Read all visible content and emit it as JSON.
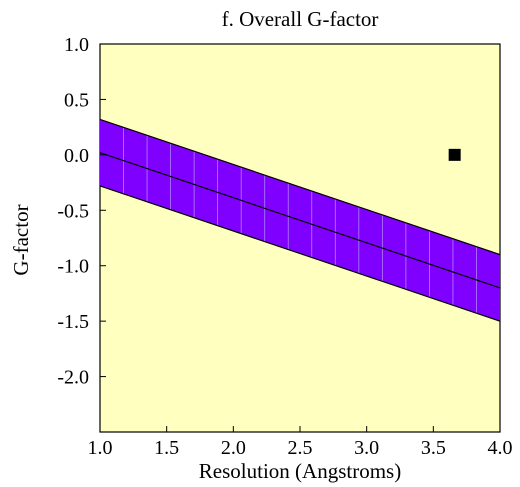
{
  "chart_data": {
    "type": "line",
    "title": "f. Overall G-factor",
    "xlabel": "Resolution (Angstroms)",
    "ylabel": "G-factor",
    "xlim": [
      1.0,
      4.0
    ],
    "ylim": [
      -2.5,
      1.0
    ],
    "xticks": [
      "1.0",
      "1.5",
      "2.0",
      "2.5",
      "3.0",
      "3.5",
      "4.0"
    ],
    "yticks": [
      "1.0",
      "0.5",
      "0.0",
      "-0.5",
      "-1.0",
      "-1.5",
      "-2.0"
    ],
    "x_tick_values": [
      1.0,
      1.5,
      2.0,
      2.5,
      3.0,
      3.5,
      4.0
    ],
    "y_tick_values": [
      1.0,
      0.5,
      0.0,
      -0.5,
      -1.0,
      -1.5,
      -2.0
    ],
    "band": {
      "x": [
        1.0,
        4.0
      ],
      "center": [
        0.02,
        -1.2
      ],
      "upper": [
        0.32,
        -0.9
      ],
      "lower": [
        -0.28,
        -1.5
      ],
      "color": "#8000ff"
    },
    "point": {
      "x": 3.66,
      "y": 0.0,
      "color": "#000000"
    },
    "background_color": "#ffffc0",
    "grid": false
  }
}
